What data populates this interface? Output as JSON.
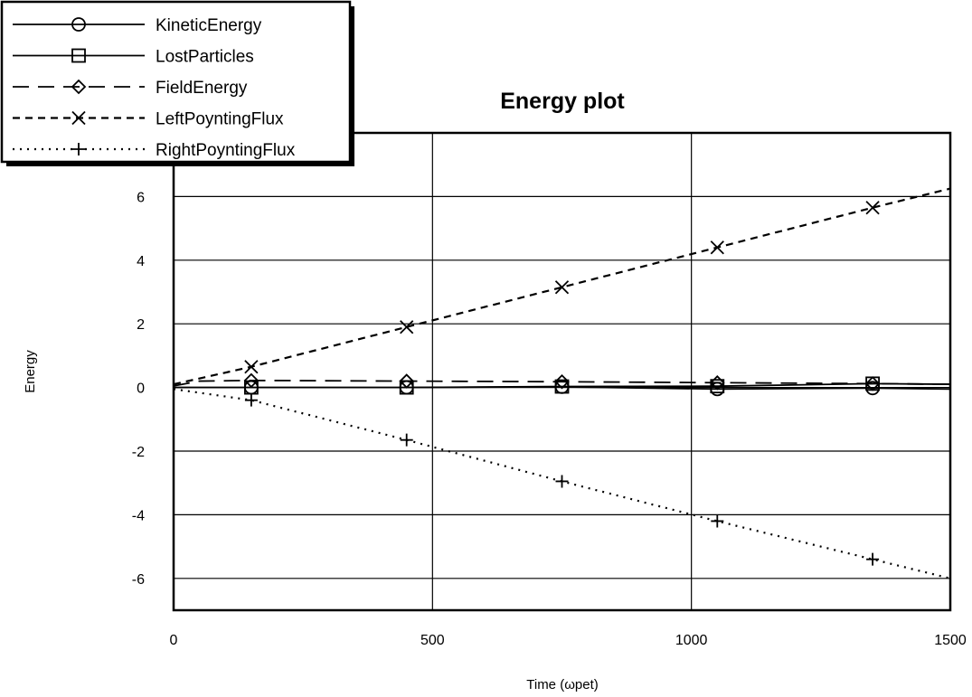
{
  "chart_data": {
    "type": "line",
    "title": "Energy plot",
    "xlabel": "Time (ωpet)",
    "ylabel": "Energy",
    "xlim": [
      0,
      1500
    ],
    "ylim": [
      -7,
      8
    ],
    "x_ticks": [
      0,
      500,
      1000,
      1500
    ],
    "y_ticks": [
      -6,
      -4,
      -2,
      0,
      2,
      4,
      6
    ],
    "x_grid": true,
    "y_grid": true,
    "legend_position": "top-left",
    "series": [
      {
        "name": "KineticEnergy",
        "line_style": "solid",
        "marker": "circle",
        "x": [
          0,
          150,
          450,
          750,
          1050,
          1350,
          1500
        ],
        "y": [
          0.0,
          0.0,
          0.0,
          0.02,
          -0.05,
          -0.02,
          -0.05
        ],
        "marker_x": [
          150,
          450,
          750,
          1050,
          1350
        ]
      },
      {
        "name": "LostParticles",
        "line_style": "solid",
        "marker": "square",
        "x": [
          0,
          150,
          450,
          750,
          1050,
          1350,
          1500
        ],
        "y": [
          0.0,
          0.0,
          0.0,
          0.03,
          0.04,
          0.12,
          0.1
        ],
        "marker_x": [
          150,
          450,
          750,
          1050,
          1350
        ]
      },
      {
        "name": "FieldEnergy",
        "line_style": "longdash",
        "marker": "diamond",
        "x": [
          0,
          50,
          150,
          450,
          750,
          1050,
          1350,
          1500
        ],
        "y": [
          0.05,
          0.2,
          0.22,
          0.2,
          0.18,
          0.15,
          0.12,
          0.1
        ],
        "marker_x": [
          150,
          450,
          750,
          1050,
          1350
        ]
      },
      {
        "name": "LeftPoyntingFlux",
        "line_style": "dash",
        "marker": "x",
        "x": [
          0,
          150,
          450,
          750,
          1050,
          1350,
          1500
        ],
        "y": [
          0.1,
          0.65,
          1.9,
          3.15,
          4.4,
          5.65,
          6.25
        ],
        "marker_x": [
          150,
          450,
          750,
          1050,
          1350
        ]
      },
      {
        "name": "RightPoyntingFlux",
        "line_style": "dot",
        "marker": "plus",
        "x": [
          0,
          150,
          450,
          750,
          1050,
          1350,
          1500
        ],
        "y": [
          -0.05,
          -0.4,
          -1.65,
          -2.95,
          -4.2,
          -5.4,
          -6.0
        ],
        "marker_x": [
          150,
          450,
          750,
          1050,
          1350
        ]
      }
    ]
  }
}
